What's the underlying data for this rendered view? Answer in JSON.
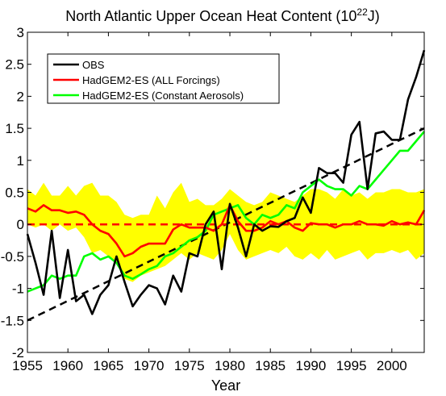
{
  "chart_data": {
    "type": "line",
    "title": "North Atlantic Upper Ocean Heat Content (10",
    "title_sup": "22",
    "title_end": "J)",
    "xlabel": "Year",
    "ylabel": "",
    "xlim": [
      1955,
      2004
    ],
    "ylim": [
      -2,
      3
    ],
    "xticks": [
      1955,
      1960,
      1965,
      1970,
      1975,
      1980,
      1985,
      1990,
      1995,
      2000
    ],
    "yticks": [
      -2,
      -1.5,
      -1,
      -0.5,
      0,
      0.5,
      1,
      1.5,
      2,
      2.5,
      3
    ],
    "x": [
      1955,
      1956,
      1957,
      1958,
      1959,
      1960,
      1961,
      1962,
      1963,
      1964,
      1965,
      1966,
      1967,
      1968,
      1969,
      1970,
      1971,
      1972,
      1973,
      1974,
      1975,
      1976,
      1977,
      1978,
      1979,
      1980,
      1981,
      1982,
      1983,
      1984,
      1985,
      1986,
      1987,
      1988,
      1989,
      1990,
      1991,
      1992,
      1993,
      1994,
      1995,
      1996,
      1997,
      1998,
      1999,
      2000,
      2001,
      2002,
      2003,
      2004
    ],
    "legend": {
      "position": "top-left"
    },
    "series": [
      {
        "name": "OBS",
        "color": "#000000",
        "values": [
          -0.15,
          -0.6,
          -1.1,
          -0.1,
          -1.15,
          -0.4,
          -1.2,
          -1.1,
          -1.4,
          -1.1,
          -0.95,
          -0.5,
          -0.9,
          -1.28,
          -1.1,
          -0.95,
          -1.0,
          -1.25,
          -0.8,
          -1.05,
          -0.45,
          -0.5,
          0.0,
          0.2,
          -0.7,
          0.32,
          -0.05,
          -0.5,
          0.0,
          -0.1,
          -0.03,
          -0.04,
          0.05,
          0.1,
          0.42,
          0.18,
          0.88,
          0.8,
          0.8,
          0.65,
          1.4,
          1.6,
          0.55,
          1.42,
          1.45,
          1.32,
          1.32,
          1.95,
          2.3,
          2.72
        ]
      },
      {
        "name": "HadGEM2-ES (ALL Forcings)",
        "color": "#ff0000",
        "values": [
          0.25,
          0.2,
          0.3,
          0.22,
          0.22,
          0.18,
          0.2,
          0.15,
          0.0,
          -0.1,
          -0.15,
          -0.3,
          -0.5,
          -0.45,
          -0.35,
          -0.3,
          -0.3,
          -0.3,
          -0.08,
          0.0,
          -0.05,
          -0.05,
          -0.05,
          -0.1,
          0.0,
          0.3,
          0.05,
          -0.1,
          -0.1,
          -0.05,
          0.05,
          0.0,
          0.05,
          -0.05,
          -0.1,
          0.02,
          0.0,
          0.0,
          -0.05,
          0.0,
          0.0,
          0.05,
          0.0,
          0.0,
          -0.02,
          0.05,
          0.0,
          0.03,
          0.0,
          0.22
        ]
      },
      {
        "name": "HadGEM2-ES (Constant Aerosols)",
        "color": "#00ff00",
        "values": [
          -1.05,
          -1.0,
          -0.95,
          -0.8,
          -0.85,
          -0.8,
          -0.8,
          -0.5,
          -0.45,
          -0.55,
          -0.5,
          -0.6,
          -0.8,
          -0.85,
          -0.78,
          -0.7,
          -0.65,
          -0.5,
          -0.45,
          -0.35,
          -0.25,
          -0.2,
          -0.1,
          0.15,
          0.2,
          0.25,
          0.3,
          0.1,
          0.0,
          0.15,
          0.1,
          0.15,
          0.3,
          0.25,
          0.5,
          0.6,
          0.7,
          0.6,
          0.55,
          0.55,
          0.45,
          0.6,
          0.55,
          0.7,
          0.85,
          1.0,
          1.15,
          1.15,
          1.3,
          1.45
        ]
      }
    ],
    "uncertainty_band": {
      "color": "#ffff00",
      "upper": [
        0.55,
        0.45,
        0.65,
        0.45,
        0.45,
        0.6,
        0.45,
        0.6,
        0.65,
        0.45,
        0.45,
        0.35,
        0.15,
        0.1,
        0.15,
        0.15,
        0.45,
        0.25,
        0.5,
        0.65,
        0.35,
        0.4,
        0.3,
        0.3,
        0.4,
        0.55,
        0.45,
        0.35,
        0.3,
        0.35,
        0.5,
        0.45,
        0.4,
        0.35,
        0.45,
        0.55,
        0.55,
        0.5,
        0.4,
        0.55,
        0.45,
        0.5,
        0.4,
        0.5,
        0.5,
        0.55,
        0.55,
        0.5,
        0.5,
        0.55
      ],
      "lower": [
        0.0,
        -0.05,
        0.0,
        -0.1,
        0.0,
        -0.1,
        -0.05,
        -0.2,
        -0.45,
        -0.4,
        -0.5,
        -0.6,
        -0.85,
        -0.9,
        -0.8,
        -0.75,
        -0.7,
        -0.65,
        -0.55,
        -0.45,
        -0.55,
        -0.45,
        -0.5,
        -0.55,
        -0.4,
        -0.15,
        -0.4,
        -0.55,
        -0.5,
        -0.45,
        -0.4,
        -0.45,
        -0.35,
        -0.5,
        -0.55,
        -0.45,
        -0.55,
        -0.4,
        -0.55,
        -0.5,
        -0.45,
        -0.4,
        -0.55,
        -0.45,
        -0.45,
        -0.4,
        -0.45,
        -0.4,
        -0.55,
        -0.45
      ]
    },
    "trend_lines": [
      {
        "color": "#000000",
        "dash": "dashed",
        "x": [
          1955,
          2004
        ],
        "y": [
          -1.5,
          1.5
        ]
      },
      {
        "color": "#ff0000",
        "dash": "dashed",
        "x": [
          1955,
          2004
        ],
        "y": [
          0,
          0
        ]
      }
    ]
  }
}
